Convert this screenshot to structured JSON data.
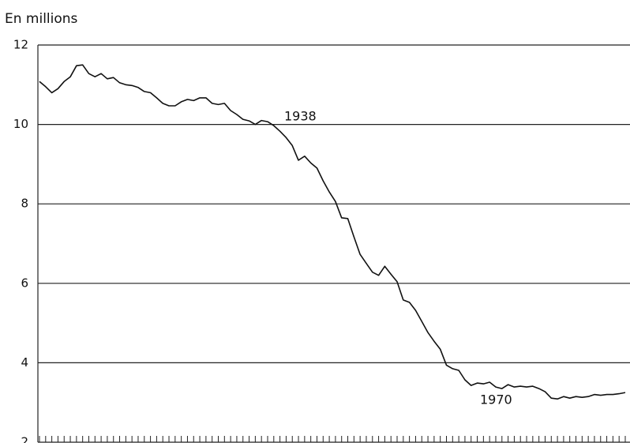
{
  "chart_data": {
    "type": "line",
    "y_label": "En millions",
    "annotations": [
      "1938",
      "1970"
    ],
    "x": [
      1900,
      1901,
      1902,
      1903,
      1904,
      1905,
      1906,
      1907,
      1908,
      1909,
      1910,
      1911,
      1912,
      1913,
      1914,
      1915,
      1916,
      1917,
      1918,
      1919,
      1920,
      1921,
      1922,
      1923,
      1924,
      1925,
      1926,
      1927,
      1928,
      1929,
      1930,
      1931,
      1932,
      1933,
      1934,
      1935,
      1936,
      1937,
      1938,
      1939,
      1940,
      1941,
      1942,
      1943,
      1944,
      1945,
      1946,
      1947,
      1948,
      1949,
      1950,
      1951,
      1952,
      1953,
      1954,
      1955,
      1956,
      1957,
      1958,
      1959,
      1960,
      1961,
      1962,
      1963,
      1964,
      1965,
      1966,
      1967,
      1968,
      1969,
      1970,
      1971,
      1972,
      1973,
      1974,
      1975,
      1976,
      1977,
      1978,
      1979,
      1980,
      1981,
      1982,
      1983,
      1984,
      1985,
      1986,
      1987,
      1988,
      1989,
      1990,
      1991,
      1992,
      1993,
      1994,
      1995
    ],
    "values": [
      11.08,
      10.95,
      10.8,
      10.9,
      11.08,
      11.2,
      11.48,
      11.5,
      11.28,
      11.2,
      11.28,
      11.15,
      11.18,
      11.05,
      11.0,
      10.98,
      10.93,
      10.83,
      10.8,
      10.67,
      10.53,
      10.47,
      10.47,
      10.57,
      10.63,
      10.6,
      10.67,
      10.67,
      10.53,
      10.5,
      10.53,
      10.35,
      10.25,
      10.13,
      10.09,
      10.0,
      10.1,
      10.07,
      9.97,
      9.83,
      9.67,
      9.47,
      9.1,
      9.2,
      9.03,
      8.9,
      8.58,
      8.3,
      8.06,
      7.65,
      7.63,
      7.17,
      6.73,
      6.5,
      6.28,
      6.2,
      6.43,
      6.23,
      6.04,
      5.58,
      5.52,
      5.32,
      5.04,
      4.76,
      4.54,
      4.34,
      3.94,
      3.85,
      3.81,
      3.57,
      3.43,
      3.49,
      3.47,
      3.51,
      3.39,
      3.35,
      3.45,
      3.39,
      3.41,
      3.39,
      3.41,
      3.35,
      3.27,
      3.11,
      3.09,
      3.15,
      3.11,
      3.15,
      3.13,
      3.15,
      3.2,
      3.18,
      3.2,
      3.2,
      3.22,
      3.25
    ],
    "color": "#111111",
    "xlim": [
      1900,
      1995
    ],
    "xticks": [
      1900,
      1901,
      1902,
      1903,
      1904,
      1905,
      1906,
      1907,
      1908,
      1909,
      1910,
      1911,
      1912,
      1913,
      1914,
      1915,
      1916,
      1917,
      1918,
      1919,
      1920,
      1921,
      1922,
      1923,
      1924,
      1925,
      1926,
      1927,
      1928,
      1929,
      1930,
      1931,
      1932,
      1933,
      1934,
      1935,
      1936,
      1937,
      1938,
      1939,
      1940,
      1941,
      1942,
      1943,
      1944,
      1945,
      1946,
      1947,
      1948,
      1949,
      1950,
      1951,
      1952,
      1953,
      1954,
      1955,
      1956,
      1957,
      1958,
      1959,
      1960,
      1961,
      1962,
      1963,
      1964,
      1965,
      1966,
      1967,
      1968,
      1969,
      1970,
      1971,
      1972,
      1973,
      1974,
      1975,
      1976,
      1977,
      1978,
      1979,
      1980,
      1981,
      1982,
      1983,
      1984,
      1985,
      1986,
      1987,
      1988,
      1989,
      1990,
      1991,
      1992,
      1993,
      1994,
      1995
    ],
    "ylim": [
      2,
      12
    ],
    "yticks": [
      2,
      4,
      6,
      8,
      10,
      12
    ],
    "grid": true
  }
}
